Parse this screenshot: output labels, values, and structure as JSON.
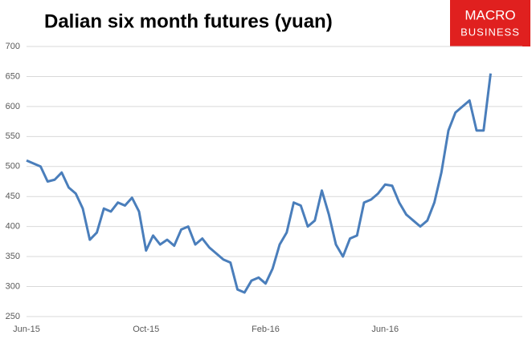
{
  "chart_data": {
    "type": "line",
    "title": "Dalian six month futures (yuan)",
    "brand": [
      "MACRO",
      "BUSINESS"
    ],
    "categories": [
      "Jun-15",
      null,
      null,
      null,
      null,
      null,
      null,
      null,
      null,
      null,
      null,
      null,
      null,
      null,
      null,
      null,
      null,
      "Oct-15",
      null,
      null,
      null,
      null,
      null,
      null,
      null,
      null,
      null,
      null,
      null,
      null,
      null,
      null,
      null,
      null,
      "Feb-16",
      null,
      null,
      null,
      null,
      null,
      null,
      null,
      null,
      null,
      null,
      null,
      null,
      null,
      null,
      null,
      null,
      "Jun-16",
      null,
      null,
      null,
      null,
      null,
      null,
      null,
      null,
      null,
      null,
      null,
      null,
      null,
      null,
      null
    ],
    "series": [
      {
        "name": "Dalian six month futures",
        "color": "#4a7ebb",
        "values": [
          510,
          505,
          500,
          475,
          478,
          490,
          465,
          455,
          430,
          378,
          390,
          430,
          425,
          440,
          435,
          448,
          425,
          360,
          385,
          370,
          378,
          368,
          395,
          400,
          370,
          380,
          365,
          355,
          345,
          340,
          295,
          290,
          310,
          315,
          305,
          330,
          370,
          390,
          440,
          435,
          400,
          410,
          460,
          420,
          370,
          350,
          380,
          385,
          440,
          445,
          455,
          470,
          468,
          440,
          420,
          410,
          400,
          410,
          440,
          490,
          560,
          590,
          600,
          610,
          560,
          560,
          655
        ]
      }
    ],
    "ylim": [
      250,
      700
    ],
    "yticks": [
      250,
      300,
      350,
      400,
      450,
      500,
      550,
      600,
      650,
      700
    ],
    "grid": true
  }
}
